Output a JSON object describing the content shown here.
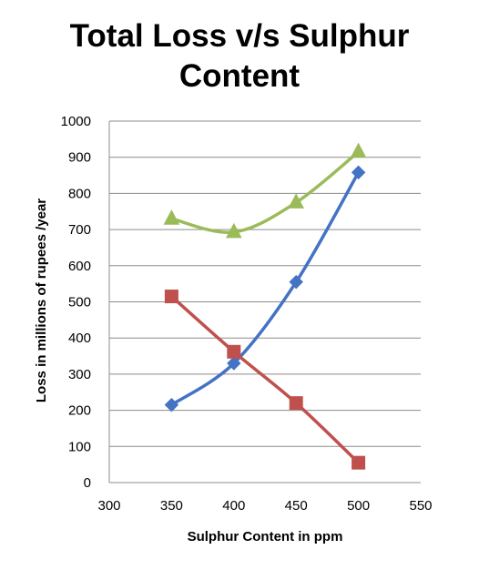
{
  "chart_data": {
    "type": "line",
    "title_line1": "Total Loss v/s Sulphur",
    "title_line2": "Content",
    "xlabel": "Sulphur Content in ppm",
    "ylabel": "Loss in millions of rupees /year",
    "xlim": [
      300,
      550
    ],
    "ylim": [
      0,
      1000
    ],
    "xticks": [
      300,
      350,
      400,
      450,
      500,
      550
    ],
    "yticks": [
      0,
      100,
      200,
      300,
      400,
      500,
      600,
      700,
      800,
      900,
      1000
    ],
    "grid": "horizontal",
    "legend": "none",
    "series": [
      {
        "marker": "diamond",
        "color": "#4472C4",
        "points": [
          [
            350,
            215
          ],
          [
            400,
            330
          ],
          [
            450,
            555
          ],
          [
            500,
            858
          ]
        ]
      },
      {
        "marker": "square",
        "color": "#C0504D",
        "points": [
          [
            350,
            515
          ],
          [
            400,
            362
          ],
          [
            450,
            220
          ],
          [
            500,
            55
          ]
        ]
      },
      {
        "marker": "triangle",
        "color": "#9BBB59",
        "points": [
          [
            350,
            730
          ],
          [
            400,
            693
          ],
          [
            450,
            775
          ],
          [
            500,
            915
          ]
        ]
      }
    ]
  }
}
